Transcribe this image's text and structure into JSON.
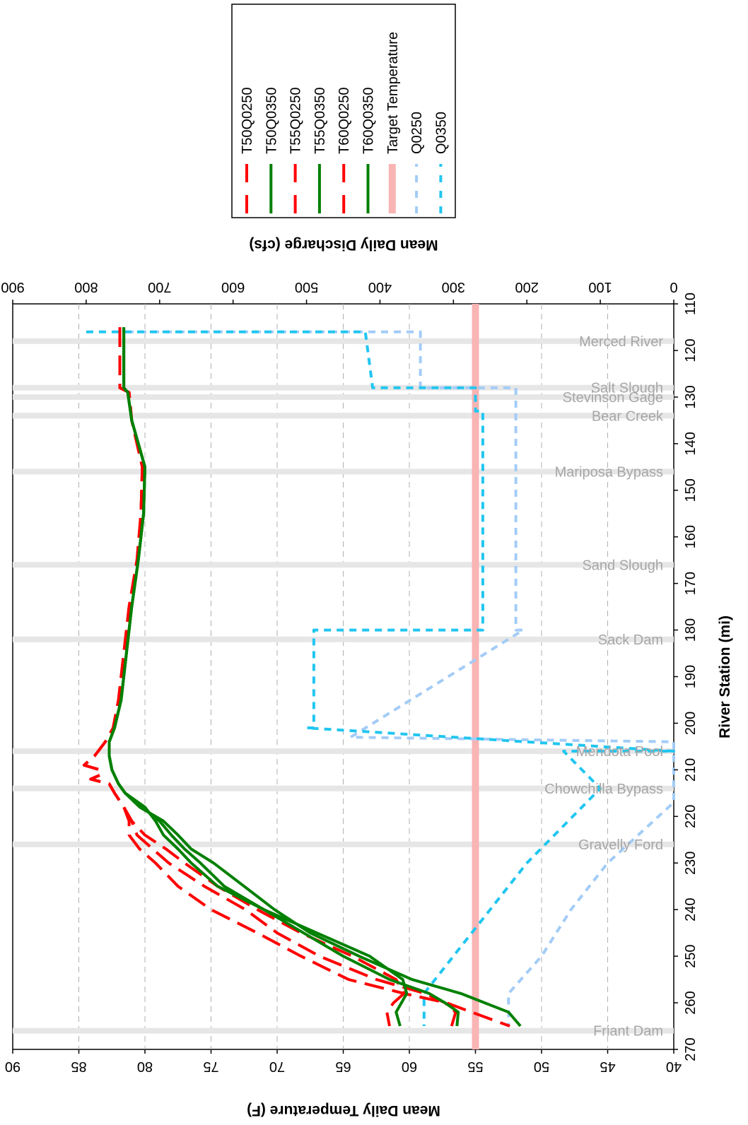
{
  "chart_data": {
    "type": "line",
    "x_axis": {
      "label": "River Station (mi)",
      "range": [
        110,
        270
      ],
      "ticks": [
        110,
        120,
        130,
        140,
        150,
        160,
        170,
        180,
        190,
        200,
        210,
        220,
        230,
        240,
        250,
        260,
        270
      ]
    },
    "y_axis_left": {
      "label": "Mean Daily Temperature (F)",
      "range": [
        40,
        90
      ],
      "ticks": [
        40,
        45,
        50,
        55,
        60,
        65,
        70,
        75,
        80,
        85,
        90
      ]
    },
    "y_axis_right": {
      "label": "Mean Daily Discharge (cfs)",
      "range": [
        0,
        900
      ],
      "ticks": [
        0,
        100,
        200,
        300,
        400,
        500,
        600,
        700,
        800,
        900
      ]
    },
    "grid": "horizontal dashed at left-axis ticks",
    "legend_position": "top-right",
    "locations": [
      {
        "name": "Merced River",
        "x": 118
      },
      {
        "name": "Salt Slough",
        "x": 128
      },
      {
        "name": "Stevinson Gage",
        "x": 130
      },
      {
        "name": "Bear Creek",
        "x": 134
      },
      {
        "name": "Mariposa Bypass",
        "x": 146
      },
      {
        "name": "Sand Slough",
        "x": 166
      },
      {
        "name": "Sack Dam",
        "x": 182
      },
      {
        "name": "Mendota Pool",
        "x": 206
      },
      {
        "name": "Chowchilla Bypass",
        "x": 214
      },
      {
        "name": "Gravelly Ford",
        "x": 226
      },
      {
        "name": "Friant Dam",
        "x": 266
      }
    ],
    "target_temperature": 55,
    "series": [
      {
        "name": "T50Q0250",
        "color": "#ff0000",
        "style": "dashed",
        "axis": "left",
        "points": [
          [
            115,
            81.9
          ],
          [
            128,
            81.9
          ],
          [
            129,
            81.2
          ],
          [
            135,
            81.0
          ],
          [
            145,
            80.2
          ],
          [
            155,
            80.3
          ],
          [
            165,
            80.6
          ],
          [
            175,
            81.2
          ],
          [
            185,
            81.6
          ],
          [
            195,
            82.0
          ],
          [
            201,
            82.4
          ],
          [
            204,
            83.0
          ],
          [
            207,
            83.8
          ],
          [
            209,
            84.6
          ],
          [
            210,
            83.4
          ],
          [
            211,
            83.3
          ],
          [
            212,
            84.1
          ],
          [
            213,
            82.7
          ],
          [
            215,
            82.3
          ],
          [
            218,
            81.6
          ],
          [
            221,
            81.2
          ],
          [
            224,
            81.2
          ],
          [
            227,
            80.4
          ],
          [
            230,
            79.2
          ],
          [
            235,
            77.5
          ],
          [
            240,
            75.0
          ],
          [
            245,
            71.5
          ],
          [
            250,
            68.2
          ],
          [
            255,
            64.6
          ],
          [
            258,
            60.4
          ],
          [
            260,
            57.2
          ],
          [
            262,
            55.3
          ],
          [
            265,
            52.4
          ]
        ]
      },
      {
        "name": "T50Q0350",
        "color": "#008000",
        "style": "solid",
        "axis": "left",
        "points": [
          [
            115,
            81.6
          ],
          [
            128,
            81.6
          ],
          [
            129,
            81.3
          ],
          [
            135,
            81.0
          ],
          [
            145,
            80.0
          ],
          [
            155,
            80.1
          ],
          [
            165,
            80.5
          ],
          [
            175,
            81.0
          ],
          [
            185,
            81.4
          ],
          [
            195,
            81.8
          ],
          [
            201,
            82.3
          ],
          [
            204,
            82.7
          ],
          [
            207,
            82.7
          ],
          [
            210,
            82.5
          ],
          [
            213,
            82.0
          ],
          [
            215,
            81.5
          ],
          [
            218,
            80.4
          ],
          [
            221,
            78.6
          ],
          [
            224,
            77.5
          ],
          [
            227,
            76.5
          ],
          [
            230,
            74.8
          ],
          [
            235,
            72.5
          ],
          [
            240,
            70.2
          ],
          [
            245,
            67.5
          ],
          [
            250,
            63.8
          ],
          [
            255,
            59.8
          ],
          [
            258,
            56.1
          ],
          [
            260,
            54.3
          ],
          [
            262,
            52.5
          ],
          [
            265,
            51.6
          ]
        ]
      },
      {
        "name": "T55Q0250",
        "color": "#ff0000",
        "style": "dashed",
        "axis": "left",
        "points": [
          [
            115,
            81.9
          ],
          [
            128,
            81.9
          ],
          [
            129,
            81.2
          ],
          [
            135,
            81.0
          ],
          [
            145,
            80.2
          ],
          [
            155,
            80.3
          ],
          [
            165,
            80.6
          ],
          [
            175,
            81.2
          ],
          [
            185,
            81.6
          ],
          [
            195,
            82.0
          ],
          [
            201,
            82.4
          ],
          [
            204,
            83.0
          ],
          [
            207,
            83.8
          ],
          [
            209,
            84.6
          ],
          [
            210,
            83.4
          ],
          [
            211,
            83.3
          ],
          [
            212,
            84.1
          ],
          [
            213,
            82.7
          ],
          [
            215,
            82.3
          ],
          [
            218,
            81.6
          ],
          [
            221,
            81.0
          ],
          [
            224,
            80.6
          ],
          [
            227,
            79.4
          ],
          [
            230,
            78.2
          ],
          [
            235,
            75.5
          ],
          [
            240,
            72.4
          ],
          [
            245,
            70.0
          ],
          [
            250,
            66.8
          ],
          [
            255,
            62.5
          ],
          [
            258,
            58.8
          ],
          [
            260,
            57.3
          ],
          [
            262,
            56.5
          ],
          [
            265,
            56.8
          ]
        ]
      },
      {
        "name": "T55Q0350",
        "color": "#008000",
        "style": "solid",
        "axis": "left",
        "points": [
          [
            115,
            81.6
          ],
          [
            128,
            81.6
          ],
          [
            129,
            81.3
          ],
          [
            135,
            81.0
          ],
          [
            145,
            80.0
          ],
          [
            155,
            80.1
          ],
          [
            165,
            80.5
          ],
          [
            175,
            81.0
          ],
          [
            185,
            81.4
          ],
          [
            195,
            81.8
          ],
          [
            201,
            82.3
          ],
          [
            204,
            82.7
          ],
          [
            207,
            82.7
          ],
          [
            210,
            82.5
          ],
          [
            213,
            82.0
          ],
          [
            215,
            81.5
          ],
          [
            218,
            80.2
          ],
          [
            221,
            78.9
          ],
          [
            224,
            78.0
          ],
          [
            227,
            77.0
          ],
          [
            230,
            75.8
          ],
          [
            235,
            74.0
          ],
          [
            240,
            71.0
          ],
          [
            245,
            68.0
          ],
          [
            250,
            65.0
          ],
          [
            255,
            61.5
          ],
          [
            258,
            58.5
          ],
          [
            260,
            57.3
          ],
          [
            262,
            56.3
          ],
          [
            265,
            56.4
          ]
        ]
      },
      {
        "name": "T60Q0250",
        "color": "#ff0000",
        "style": "dashed",
        "axis": "left",
        "points": [
          [
            115,
            81.9
          ],
          [
            128,
            81.9
          ],
          [
            129,
            81.2
          ],
          [
            135,
            81.0
          ],
          [
            145,
            80.2
          ],
          [
            155,
            80.3
          ],
          [
            165,
            80.6
          ],
          [
            175,
            81.2
          ],
          [
            185,
            81.6
          ],
          [
            195,
            82.0
          ],
          [
            201,
            82.4
          ],
          [
            204,
            83.0
          ],
          [
            207,
            83.8
          ],
          [
            209,
            84.6
          ],
          [
            210,
            83.4
          ],
          [
            211,
            83.3
          ],
          [
            212,
            84.1
          ],
          [
            213,
            82.7
          ],
          [
            215,
            82.3
          ],
          [
            218,
            81.6
          ],
          [
            221,
            81.0
          ],
          [
            224,
            80.0
          ],
          [
            227,
            78.4
          ],
          [
            230,
            77.0
          ],
          [
            235,
            74.5
          ],
          [
            240,
            71.5
          ],
          [
            245,
            68.2
          ],
          [
            250,
            64.3
          ],
          [
            255,
            61.0
          ],
          [
            258,
            60.4
          ],
          [
            260,
            61.2
          ],
          [
            262,
            61.7
          ],
          [
            265,
            61.5
          ]
        ]
      },
      {
        "name": "T60Q0350",
        "color": "#008000",
        "style": "solid",
        "axis": "left",
        "points": [
          [
            115,
            81.6
          ],
          [
            128,
            81.6
          ],
          [
            129,
            81.3
          ],
          [
            135,
            81.0
          ],
          [
            145,
            80.0
          ],
          [
            155,
            80.1
          ],
          [
            165,
            80.5
          ],
          [
            175,
            81.0
          ],
          [
            185,
            81.4
          ],
          [
            195,
            81.8
          ],
          [
            201,
            82.3
          ],
          [
            204,
            82.7
          ],
          [
            207,
            82.7
          ],
          [
            210,
            82.5
          ],
          [
            213,
            82.0
          ],
          [
            215,
            81.5
          ],
          [
            218,
            80.0
          ],
          [
            221,
            79.2
          ],
          [
            224,
            78.6
          ],
          [
            227,
            77.5
          ],
          [
            230,
            76.5
          ],
          [
            235,
            74.5
          ],
          [
            240,
            71.0
          ],
          [
            245,
            67.0
          ],
          [
            250,
            63.0
          ],
          [
            255,
            60.5
          ],
          [
            258,
            60.2
          ],
          [
            260,
            60.6
          ],
          [
            262,
            61.0
          ],
          [
            265,
            60.7
          ]
        ]
      },
      {
        "name": "Target Temperature",
        "color": "#f9b4b4",
        "style": "solid-thick",
        "axis": "left",
        "points": [
          [
            110,
            55
          ],
          [
            270,
            55
          ]
        ]
      },
      {
        "name": "Q0250",
        "color": "#a3ccf7",
        "style": "dotted",
        "axis": "right",
        "points": [
          [
            116,
            745
          ],
          [
            116,
            345
          ],
          [
            128,
            345
          ],
          [
            128,
            215
          ],
          [
            180,
            215
          ],
          [
            180,
            205
          ],
          [
            203,
            440
          ],
          [
            204,
            0
          ],
          [
            217,
            0
          ],
          [
            230,
            90
          ],
          [
            240,
            140
          ],
          [
            250,
            180
          ],
          [
            258,
            225
          ],
          [
            265,
            225
          ]
        ]
      },
      {
        "name": "Q0350",
        "color": "#21c6f0",
        "style": "dotted",
        "axis": "right",
        "points": [
          [
            116,
            800
          ],
          [
            116,
            745
          ],
          [
            116,
            420
          ],
          [
            128,
            410
          ],
          [
            128,
            270
          ],
          [
            133,
            270
          ],
          [
            133,
            260
          ],
          [
            180,
            260
          ],
          [
            180,
            490
          ],
          [
            201,
            490
          ],
          [
            201,
            500
          ],
          [
            206,
            0
          ],
          [
            206,
            150
          ],
          [
            214,
            100
          ],
          [
            230,
            200
          ],
          [
            240,
            250
          ],
          [
            250,
            300
          ],
          [
            258,
            340
          ],
          [
            265,
            340
          ]
        ]
      }
    ]
  }
}
